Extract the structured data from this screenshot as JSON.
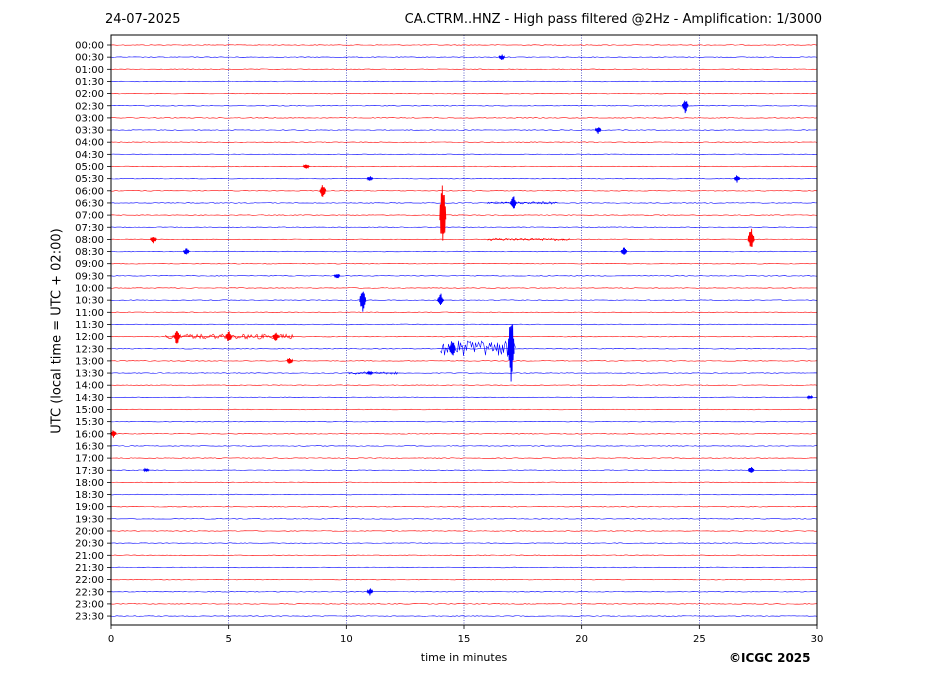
{
  "header": {
    "date": "24-07-2025",
    "title": "CA.CTRM..HNZ - High pass filtered @2Hz - Amplification: 1/3000"
  },
  "footer": {
    "copyright": "©ICGC 2025"
  },
  "chart_data": {
    "type": "line",
    "title": "CA.CTRM..HNZ - High pass filtered @2Hz - Amplification: 1/3000",
    "xlabel": "time in minutes",
    "ylabel": "UTC (local time = UTC + 02:00)",
    "xlim": [
      0,
      30
    ],
    "x_ticks": [
      0,
      5,
      10,
      15,
      20,
      25,
      30
    ],
    "grid": "vertical dotted at 5-minute intervals",
    "colors": {
      "red_trace": "#ff0000",
      "blue_trace": "#0000ff",
      "grid": "#0000aa"
    },
    "rows": [
      "00:00",
      "00:30",
      "01:00",
      "01:30",
      "02:00",
      "02:30",
      "03:00",
      "03:30",
      "04:00",
      "04:30",
      "05:00",
      "05:30",
      "06:00",
      "06:30",
      "07:00",
      "07:30",
      "08:00",
      "08:30",
      "09:00",
      "09:30",
      "10:00",
      "10:30",
      "11:00",
      "11:30",
      "12:00",
      "12:30",
      "13:00",
      "13:30",
      "14:00",
      "14:30",
      "15:00",
      "15:30",
      "16:00",
      "16:30",
      "17:00",
      "17:30",
      "18:00",
      "18:30",
      "19:00",
      "19:30",
      "20:00",
      "20:30",
      "21:00",
      "21:30",
      "22:00",
      "22:30",
      "23:00",
      "23:30"
    ],
    "trace_colors": "alternating red (even rows) and blue (odd rows)",
    "events": [
      {
        "row": "00:30",
        "minute": 16.6,
        "amplitude": 0.3
      },
      {
        "row": "02:30",
        "minute": 24.4,
        "amplitude": 0.8
      },
      {
        "row": "03:30",
        "minute": 20.7,
        "amplitude": 0.4
      },
      {
        "row": "05:00",
        "minute": 8.3,
        "amplitude": 0.3
      },
      {
        "row": "05:30",
        "minute": 11.0,
        "amplitude": 0.3
      },
      {
        "row": "05:30",
        "minute": 26.6,
        "amplitude": 0.4
      },
      {
        "row": "06:00",
        "minute": 9.0,
        "amplitude": 0.8
      },
      {
        "row": "06:30",
        "minute": 17.1,
        "amplitude": 0.8
      },
      {
        "row": "07:00",
        "minute": 14.1,
        "amplitude": 4.5
      },
      {
        "row": "08:00",
        "minute": 27.2,
        "amplitude": 1.3
      },
      {
        "row": "08:00",
        "minute": 1.8,
        "amplitude": 0.4
      },
      {
        "row": "08:30",
        "minute": 21.8,
        "amplitude": 0.5
      },
      {
        "row": "08:30",
        "minute": 3.2,
        "amplitude": 0.4
      },
      {
        "row": "09:30",
        "minute": 9.6,
        "amplitude": 0.3
      },
      {
        "row": "10:30",
        "minute": 10.7,
        "amplitude": 1.5
      },
      {
        "row": "10:30",
        "minute": 14.0,
        "amplitude": 0.8
      },
      {
        "row": "12:00",
        "minute": 2.8,
        "amplitude": 0.9
      },
      {
        "row": "12:00",
        "minute": 5.0,
        "amplitude": 0.7
      },
      {
        "row": "12:00",
        "minute": 7.0,
        "amplitude": 0.6
      },
      {
        "row": "12:30",
        "minute": 17.0,
        "amplitude": 4.5
      },
      {
        "row": "12:30",
        "minute": 14.5,
        "amplitude": 1.1
      },
      {
        "row": "13:00",
        "minute": 7.6,
        "amplitude": 0.4
      },
      {
        "row": "13:30",
        "minute": 11.0,
        "amplitude": 0.2
      },
      {
        "row": "14:30",
        "minute": 29.7,
        "amplitude": 0.2
      },
      {
        "row": "16:00",
        "minute": 0.1,
        "amplitude": 0.4
      },
      {
        "row": "17:30",
        "minute": 27.2,
        "amplitude": 0.4
      },
      {
        "row": "17:30",
        "minute": 1.5,
        "amplitude": 0.2
      },
      {
        "row": "22:30",
        "minute": 11.0,
        "amplitude": 0.4
      }
    ],
    "sustained_noise": [
      {
        "row": "12:30",
        "from": 14.0,
        "to": 17.2,
        "amplitude": 0.8
      },
      {
        "row": "12:00",
        "from": 2.3,
        "to": 7.8,
        "amplitude": 0.25
      },
      {
        "row": "13:30",
        "from": 10.1,
        "to": 12.2,
        "amplitude": 0.12
      },
      {
        "row": "06:30",
        "from": 16.0,
        "to": 19.0,
        "amplitude": 0.12
      },
      {
        "row": "08:00",
        "from": 16.0,
        "to": 19.5,
        "amplitude": 0.12
      }
    ]
  }
}
